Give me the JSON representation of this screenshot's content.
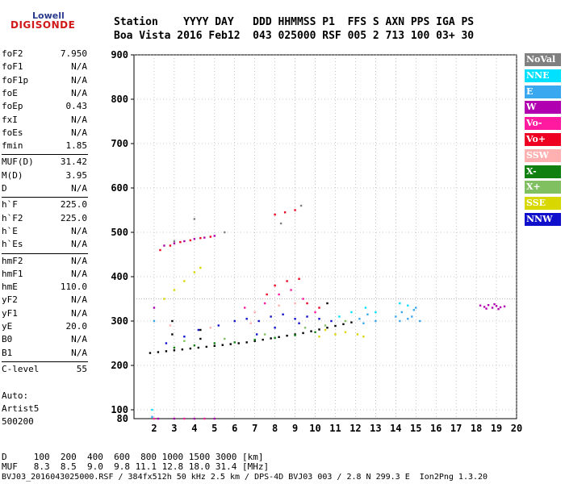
{
  "logo": {
    "top": "Lowell",
    "bottom": "DIGISONDE"
  },
  "header": {
    "line1": "Station    YYYY DAY   DDD HHMMSS P1  FFS S AXN PPS IGA PS",
    "line2": "Boa Vista 2016 Feb12  043 025000 RSF 005 2 713 100 03+ 30"
  },
  "params": [
    {
      "label": "foF2",
      "value": "7.950"
    },
    {
      "label": "foF1",
      "value": "N/A"
    },
    {
      "label": "foF1p",
      "value": "N/A"
    },
    {
      "label": "foE",
      "value": "N/A"
    },
    {
      "label": "foEp",
      "value": "0.43"
    },
    {
      "label": "fxI",
      "value": "N/A"
    },
    {
      "label": "foEs",
      "value": "N/A"
    },
    {
      "label": "fmin",
      "value": "1.85"
    },
    {
      "label": "MUF(D)",
      "value": "31.42"
    },
    {
      "label": "M(D)",
      "value": "3.95"
    },
    {
      "label": "D",
      "value": "N/A"
    },
    {
      "label": "h`F",
      "value": "225.0"
    },
    {
      "label": "h`F2",
      "value": "225.0"
    },
    {
      "label": "h`E",
      "value": "N/A"
    },
    {
      "label": "h`Es",
      "value": "N/A"
    },
    {
      "label": "hmF2",
      "value": "N/A"
    },
    {
      "label": "hmF1",
      "value": "N/A"
    },
    {
      "label": "hmE",
      "value": "110.0"
    },
    {
      "label": "yF2",
      "value": "N/A"
    },
    {
      "label": "yF1",
      "value": "N/A"
    },
    {
      "label": "yE",
      "value": "20.0"
    },
    {
      "label": "B0",
      "value": "N/A"
    },
    {
      "label": "B1",
      "value": "N/A"
    },
    {
      "label": "C-level",
      "value": "55"
    }
  ],
  "auto": {
    "line1": "Auto:",
    "line2": "Artist5",
    "line3": "500200"
  },
  "legend": [
    {
      "label": "NoVal",
      "color": "#808080"
    },
    {
      "label": "NNE",
      "color": "#00e0ff"
    },
    {
      "label": "E",
      "color": "#3aa8f0"
    },
    {
      "label": "W",
      "color": "#b000b0"
    },
    {
      "label": "Vo-",
      "color": "#ff1aa0"
    },
    {
      "label": "Vo+",
      "color": "#ee0022"
    },
    {
      "label": "SSW",
      "color": "#ffb0b0"
    },
    {
      "label": "X-",
      "color": "#108010"
    },
    {
      "label": "X+",
      "color": "#80c060"
    },
    {
      "label": "SSE",
      "color": "#d8d800"
    },
    {
      "label": "NNW",
      "color": "#1010cc"
    }
  ],
  "footer": {
    "d_line": "D     100  200  400  600  800 1000 1500 3000 [km]",
    "muf_line": "MUF   8.3  8.5  9.0  9.8 11.1 12.8 18.0 31.4 [MHz]",
    "file_line": "BVJ03_2016043025000.RSF / 384fx512h 50 kHz 2.5 km / DPS-4D BVJ03 003 / 2.8 N 299.3 E  Ion2Png 1.3.20"
  },
  "chart_data": {
    "type": "scatter",
    "title": "",
    "xlabel": "",
    "ylabel": "",
    "xlim": [
      1,
      20
    ],
    "ylim": [
      80,
      900
    ],
    "x_ticks": [
      2,
      3,
      4,
      5,
      6,
      7,
      8,
      9,
      10,
      11,
      12,
      13,
      14,
      15,
      16,
      17,
      18,
      19,
      20
    ],
    "y_ticks": [
      100,
      200,
      300,
      400,
      500,
      600,
      700,
      800,
      900
    ],
    "y_ticks_low": [
      80
    ],
    "reference_height": 350,
    "grid": "dotted",
    "legend_placement": "right",
    "series": [
      {
        "color": "#000000",
        "points": [
          [
            1.8,
            228
          ],
          [
            2.2,
            230
          ],
          [
            2.6,
            232
          ],
          [
            3.0,
            234
          ],
          [
            3.4,
            236
          ],
          [
            3.8,
            238
          ],
          [
            4.2,
            240
          ],
          [
            4.6,
            242
          ],
          [
            5.0,
            244
          ],
          [
            5.4,
            246
          ],
          [
            5.8,
            248
          ],
          [
            6.2,
            250
          ],
          [
            6.6,
            252
          ],
          [
            7.0,
            255
          ],
          [
            7.4,
            258
          ],
          [
            7.8,
            261
          ],
          [
            8.2,
            264
          ],
          [
            8.6,
            267
          ],
          [
            9.0,
            270
          ],
          [
            9.4,
            273
          ],
          [
            9.8,
            277
          ],
          [
            10.2,
            281
          ],
          [
            10.6,
            285
          ],
          [
            11.0,
            289
          ],
          [
            11.4,
            293
          ],
          [
            11.8,
            297
          ],
          [
            2.9,
            270
          ],
          [
            2.9,
            300
          ],
          [
            4.3,
            260
          ],
          [
            4.3,
            280
          ],
          [
            10.6,
            340
          ]
        ]
      },
      {
        "color": "#1010cc",
        "points": [
          [
            2.6,
            250
          ],
          [
            3.5,
            265
          ],
          [
            4.2,
            280
          ],
          [
            5.2,
            290
          ],
          [
            6.0,
            300
          ],
          [
            6.6,
            305
          ],
          [
            7.2,
            300
          ],
          [
            7.8,
            310
          ],
          [
            8.4,
            315
          ],
          [
            9.0,
            305
          ],
          [
            9.6,
            310
          ],
          [
            10.2,
            305
          ],
          [
            10.8,
            300
          ],
          [
            7.1,
            270
          ],
          [
            8.0,
            285
          ],
          [
            9.2,
            295
          ]
        ]
      },
      {
        "color": "#b000b0",
        "points": [
          [
            18.2,
            335
          ],
          [
            18.4,
            332
          ],
          [
            18.6,
            336
          ],
          [
            18.8,
            330
          ],
          [
            19.0,
            334
          ],
          [
            19.2,
            331
          ],
          [
            19.4,
            333
          ],
          [
            18.5,
            328
          ],
          [
            18.9,
            338
          ],
          [
            19.1,
            327
          ],
          [
            2.0,
            330
          ],
          [
            2.5,
            470
          ],
          [
            3.0,
            475
          ],
          [
            3.5,
            480
          ],
          [
            4.0,
            485
          ],
          [
            4.5,
            488
          ],
          [
            5.0,
            492
          ],
          [
            2.2,
            80
          ],
          [
            3.0,
            80
          ],
          [
            4.0,
            80
          ],
          [
            5.0,
            80
          ]
        ]
      },
      {
        "color": "#ee0022",
        "points": [
          [
            2.3,
            460
          ],
          [
            2.8,
            470
          ],
          [
            3.3,
            478
          ],
          [
            3.8,
            482
          ],
          [
            4.3,
            487
          ],
          [
            4.8,
            490
          ],
          [
            8.0,
            380
          ],
          [
            8.6,
            390
          ],
          [
            9.2,
            395
          ],
          [
            9.0,
            550
          ],
          [
            8.5,
            545
          ],
          [
            8.0,
            540
          ],
          [
            7.6,
            360
          ],
          [
            9.6,
            340
          ],
          [
            10.2,
            330
          ]
        ]
      },
      {
        "color": "#ff1aa0",
        "points": [
          [
            6.5,
            330
          ],
          [
            7.5,
            340
          ],
          [
            8.2,
            360
          ],
          [
            8.8,
            370
          ],
          [
            9.4,
            350
          ],
          [
            10.0,
            320
          ],
          [
            2.0,
            80
          ],
          [
            3.5,
            80
          ],
          [
            4.5,
            80
          ]
        ]
      },
      {
        "color": "#3aa8f0",
        "points": [
          [
            14.0,
            310
          ],
          [
            14.3,
            320
          ],
          [
            14.6,
            305
          ],
          [
            14.9,
            325
          ],
          [
            15.2,
            300
          ],
          [
            14.2,
            300
          ],
          [
            14.8,
            310
          ],
          [
            15.0,
            330
          ],
          [
            12.2,
            305
          ],
          [
            12.6,
            315
          ],
          [
            13.0,
            300
          ],
          [
            12.4,
            295
          ],
          [
            2.0,
            300
          ],
          [
            1.9,
            84
          ]
        ]
      },
      {
        "color": "#00e0ff",
        "points": [
          [
            12.5,
            330
          ],
          [
            13.0,
            320
          ],
          [
            14.2,
            340
          ],
          [
            14.6,
            335
          ],
          [
            11.2,
            310
          ],
          [
            11.8,
            320
          ],
          [
            1.9,
            100
          ]
        ]
      },
      {
        "color": "#d8d800",
        "points": [
          [
            2.5,
            350
          ],
          [
            3.0,
            370
          ],
          [
            3.5,
            390
          ],
          [
            4.0,
            410
          ],
          [
            4.3,
            420
          ],
          [
            10.5,
            280
          ],
          [
            11.0,
            270
          ],
          [
            11.5,
            275
          ],
          [
            12.1,
            270
          ],
          [
            12.4,
            265
          ],
          [
            10.2,
            265
          ]
        ]
      },
      {
        "color": "#108010",
        "points": [
          [
            3.0,
            240
          ],
          [
            4.0,
            245
          ],
          [
            5.0,
            250
          ],
          [
            6.0,
            252
          ],
          [
            7.0,
            258
          ],
          [
            8.0,
            262
          ],
          [
            9.0,
            268
          ],
          [
            10.0,
            275
          ]
        ]
      },
      {
        "color": "#80c060",
        "points": [
          [
            3.5,
            255
          ],
          [
            5.5,
            260
          ],
          [
            7.5,
            270
          ],
          [
            9.5,
            285
          ],
          [
            10.5,
            290
          ],
          [
            11.5,
            300
          ]
        ]
      },
      {
        "color": "#ffb0b0",
        "points": [
          [
            2.8,
            290
          ],
          [
            4.8,
            285
          ],
          [
            6.8,
            295
          ],
          [
            8.2,
            335
          ],
          [
            9.0,
            340
          ],
          [
            7.0,
            320
          ]
        ]
      },
      {
        "color": "#808080",
        "points": [
          [
            3.0,
            480
          ],
          [
            5.5,
            500
          ],
          [
            8.3,
            520
          ],
          [
            9.3,
            560
          ],
          [
            4.0,
            530
          ]
        ]
      }
    ]
  }
}
